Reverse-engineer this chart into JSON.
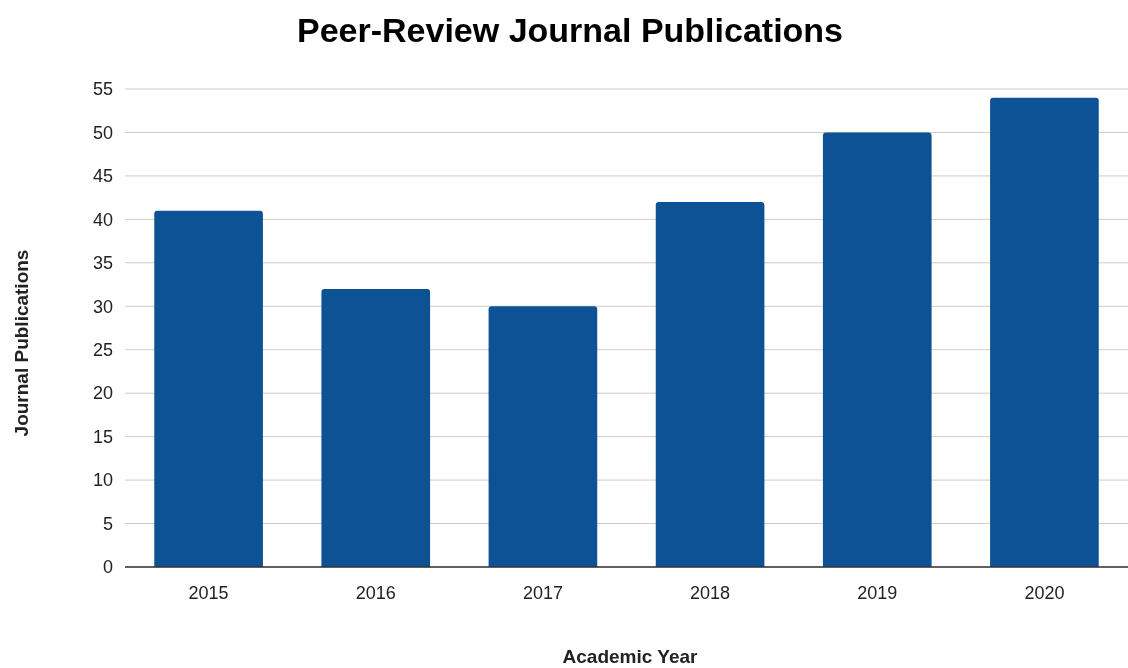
{
  "chart_data": {
    "type": "bar",
    "title": "Peer-Review Journal Publications",
    "xlabel": "Academic Year",
    "ylabel": "Journal Publications",
    "categories": [
      "2015",
      "2016",
      "2017",
      "2018",
      "2019",
      "2020"
    ],
    "values": [
      41,
      32,
      30,
      42,
      50,
      54
    ],
    "color": "#0d5295",
    "ylim": [
      0,
      55
    ],
    "yticks": [
      0,
      5,
      10,
      15,
      20,
      25,
      30,
      35,
      40,
      45,
      50,
      55
    ],
    "grid": "y"
  }
}
